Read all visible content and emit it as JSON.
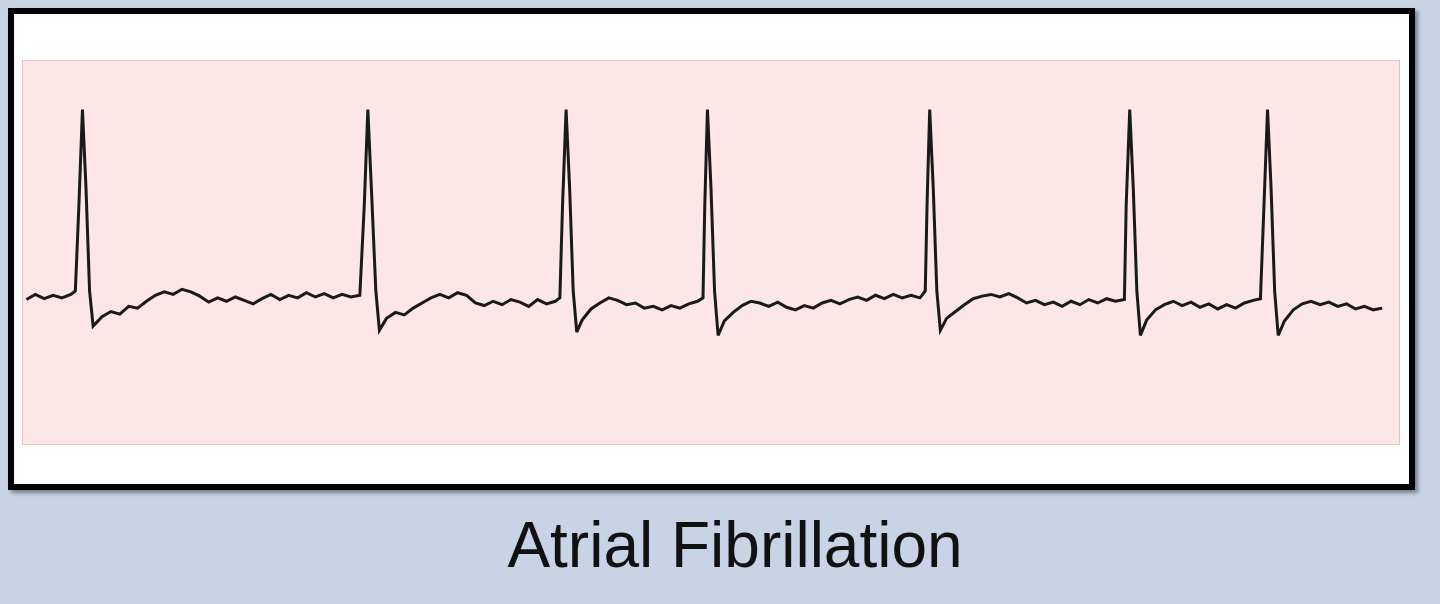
{
  "chart_data": {
    "type": "line",
    "title": "Atrial Fibrillation",
    "color": "#1a1a1a",
    "grid": true,
    "tick_labels": false,
    "xlim": [
      0,
      155
    ],
    "ylim": [
      0,
      45
    ],
    "xticks": [
      0,
      5,
      10,
      15,
      20,
      25,
      30,
      35,
      40,
      45,
      50,
      55,
      60,
      65,
      70,
      75,
      80,
      85,
      90,
      95,
      100,
      105,
      110,
      115,
      120,
      125,
      130,
      135,
      140,
      145,
      150,
      155
    ],
    "yticks": [
      0,
      5,
      10,
      15,
      20,
      25,
      30,
      35,
      40,
      45
    ],
    "x": [
      0.5,
      1.5,
      2.5,
      3.5,
      4.5,
      5.5,
      6.0,
      6.4,
      6.8,
      7.2,
      7.6,
      8.0,
      9,
      10,
      11,
      12,
      13,
      14,
      15,
      16,
      17,
      18,
      19,
      20,
      21,
      22,
      23,
      24,
      25,
      26,
      27,
      28,
      29,
      30,
      31,
      32,
      33,
      34,
      35,
      36,
      37,
      38.0,
      38.5,
      38.9,
      39.3,
      39.8,
      40.2,
      41,
      42,
      43,
      44,
      45,
      46,
      47,
      48,
      49,
      50,
      51,
      52,
      53,
      54,
      55,
      56,
      57,
      58,
      59,
      60,
      60.5,
      60.8,
      61.2,
      61.6,
      62.0,
      62.4,
      63,
      64,
      65,
      66,
      67,
      68,
      69,
      70,
      71,
      72,
      73,
      74,
      75,
      76,
      76.6,
      76.8,
      77.1,
      77.5,
      77.9,
      78.3,
      79,
      80,
      81,
      82,
      83,
      84,
      85,
      86,
      87,
      88,
      89,
      90,
      91,
      92,
      93,
      94,
      95,
      96,
      97,
      98,
      99,
      100,
      101,
      101.6,
      101.8,
      102.1,
      102.5,
      102.9,
      103.3,
      104,
      105,
      106,
      107,
      108,
      109,
      110,
      111,
      112,
      113,
      114,
      115,
      116,
      117,
      118,
      119,
      120,
      121,
      122,
      123,
      124,
      124.2,
      124.6,
      125.0,
      125.4,
      125.8,
      126.5,
      127.5,
      128.5,
      129.5,
      130.5,
      131.5,
      132.5,
      133.5,
      134.5,
      135.5,
      136.5,
      137.5,
      138.5,
      139.3,
      139.7,
      140.1,
      140.5,
      140.9,
      141.3,
      142,
      143,
      144,
      145,
      146,
      147,
      148,
      149,
      150,
      151,
      152,
      153
    ],
    "values": [
      17.0,
      17.6,
      17.1,
      17.5,
      17.2,
      17.6,
      18.0,
      28,
      39.2,
      30,
      18,
      13.9,
      15.0,
      15.6,
      15.3,
      16.2,
      16.0,
      16.8,
      17.5,
      17.9,
      17.6,
      18.2,
      17.9,
      17.4,
      16.7,
      17.2,
      16.8,
      17.3,
      16.9,
      16.5,
      17.1,
      17.6,
      17.0,
      17.5,
      17.2,
      17.8,
      17.3,
      17.7,
      17.2,
      17.6,
      17.3,
      17.5,
      28,
      39.2,
      30,
      18,
      13.4,
      14.8,
      15.5,
      15.2,
      16.0,
      16.6,
      17.2,
      17.6,
      17.2,
      17.8,
      17.5,
      16.6,
      16.3,
      16.8,
      16.4,
      17.0,
      16.7,
      16.2,
      17.0,
      16.5,
      16.8,
      17.2,
      28,
      39.2,
      30,
      18,
      13.2,
      14.6,
      15.9,
      16.6,
      17.2,
      16.9,
      16.4,
      16.6,
      16.0,
      16.2,
      15.8,
      16.3,
      16.0,
      16.5,
      16.8,
      17.2,
      28,
      39.2,
      30,
      18,
      12.8,
      14.5,
      15.5,
      16.3,
      16.8,
      16.6,
      16.2,
      16.7,
      16.1,
      15.8,
      16.3,
      16.0,
      16.6,
      16.9,
      16.5,
      17.0,
      17.3,
      16.9,
      17.5,
      17.1,
      17.6,
      17.2,
      17.5,
      17.2,
      18,
      28,
      39.2,
      30,
      18,
      13.4,
      14.8,
      15.6,
      16.4,
      17.1,
      17.4,
      17.6,
      17.3,
      17.7,
      17.2,
      16.6,
      16.9,
      16.4,
      16.7,
      16.2,
      16.8,
      16.4,
      17.0,
      16.6,
      17.1,
      16.8,
      17.0,
      28,
      39.2,
      30,
      18,
      12.8,
      14.6,
      15.8,
      16.4,
      16.8,
      16.3,
      16.7,
      16.1,
      16.5,
      15.9,
      16.4,
      16.0,
      16.6,
      16.9,
      17.1,
      28,
      39.2,
      30,
      18,
      12.8,
      14.5,
      15.8,
      16.5,
      16.8,
      16.4,
      16.7,
      16.2,
      16.5,
      15.9,
      16.2,
      15.8,
      16.0
    ]
  }
}
